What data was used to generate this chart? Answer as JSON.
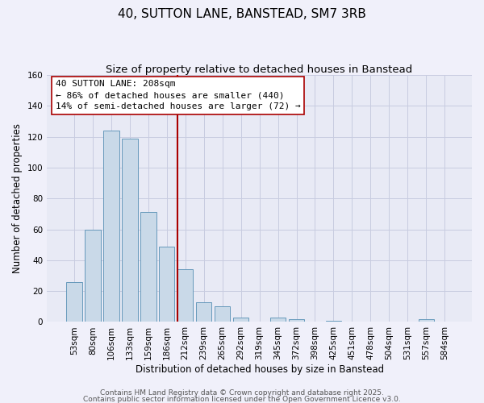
{
  "title": "40, SUTTON LANE, BANSTEAD, SM7 3RB",
  "subtitle": "Size of property relative to detached houses in Banstead",
  "xlabel": "Distribution of detached houses by size in Banstead",
  "ylabel": "Number of detached properties",
  "bar_labels": [
    "53sqm",
    "80sqm",
    "106sqm",
    "133sqm",
    "159sqm",
    "186sqm",
    "212sqm",
    "239sqm",
    "265sqm",
    "292sqm",
    "319sqm",
    "345sqm",
    "372sqm",
    "398sqm",
    "425sqm",
    "451sqm",
    "478sqm",
    "504sqm",
    "531sqm",
    "557sqm",
    "584sqm"
  ],
  "bar_heights": [
    26,
    60,
    124,
    119,
    71,
    49,
    34,
    13,
    10,
    3,
    0,
    3,
    2,
    0,
    1,
    0,
    0,
    0,
    0,
    2,
    0
  ],
  "bar_color": "#c9d9e8",
  "bar_edge_color": "#6699bb",
  "vline_color": "#aa0000",
  "ylim": [
    0,
    160
  ],
  "yticks": [
    0,
    20,
    40,
    60,
    80,
    100,
    120,
    140,
    160
  ],
  "annotation_title": "40 SUTTON LANE: 208sqm",
  "annotation_line1": "← 86% of detached houses are smaller (440)",
  "annotation_line2": "14% of semi-detached houses are larger (72) →",
  "footer1": "Contains HM Land Registry data © Crown copyright and database right 2025.",
  "footer2": "Contains public sector information licensed under the Open Government Licence v3.0.",
  "background_color": "#f0f0fa",
  "plot_background": "#e8eaf5",
  "grid_color": "#c8cce0",
  "title_fontsize": 11,
  "subtitle_fontsize": 9.5,
  "axis_label_fontsize": 8.5,
  "tick_fontsize": 7.5,
  "annotation_fontsize": 8,
  "footer_fontsize": 6.5,
  "vline_bar_index": 6
}
